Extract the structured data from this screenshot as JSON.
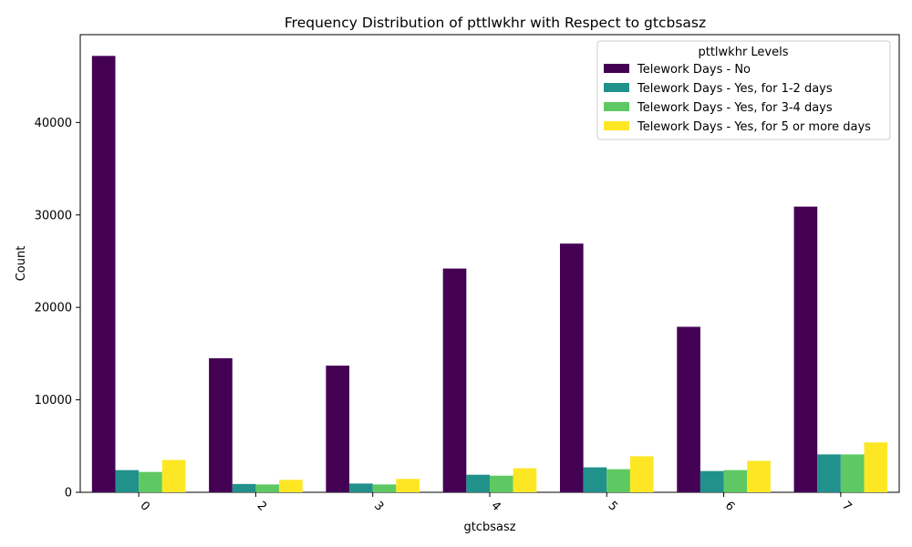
{
  "chart_data": {
    "type": "bar",
    "title": "Frequency Distribution of pttlwkhr with Respect to gtcbsasz",
    "xlabel": "gtcbsasz",
    "ylabel": "Count",
    "ylim": [
      0,
      49500
    ],
    "yticks": [
      0,
      10000,
      20000,
      30000,
      40000
    ],
    "grid": false,
    "legend": {
      "title": "pttlwkhr Levels",
      "position": "top-right"
    },
    "categories": [
      "0",
      "2",
      "3",
      "4",
      "5",
      "6",
      "7"
    ],
    "series": [
      {
        "name": "Telework Days - No",
        "color": "#440154",
        "values": [
          47200,
          14500,
          13700,
          24200,
          26900,
          17900,
          30900
        ]
      },
      {
        "name": "Telework Days - Yes, for 1-2 days",
        "color": "#21918c",
        "values": [
          2400,
          900,
          950,
          1900,
          2700,
          2300,
          4100
        ]
      },
      {
        "name": "Telework Days - Yes, for 3-4 days",
        "color": "#5ec962",
        "values": [
          2200,
          850,
          850,
          1800,
          2500,
          2400,
          4100
        ]
      },
      {
        "name": "Telework Days - Yes, for 5 or more days",
        "color": "#fde725",
        "values": [
          3500,
          1350,
          1450,
          2600,
          3900,
          3400,
          5400
        ]
      }
    ]
  }
}
